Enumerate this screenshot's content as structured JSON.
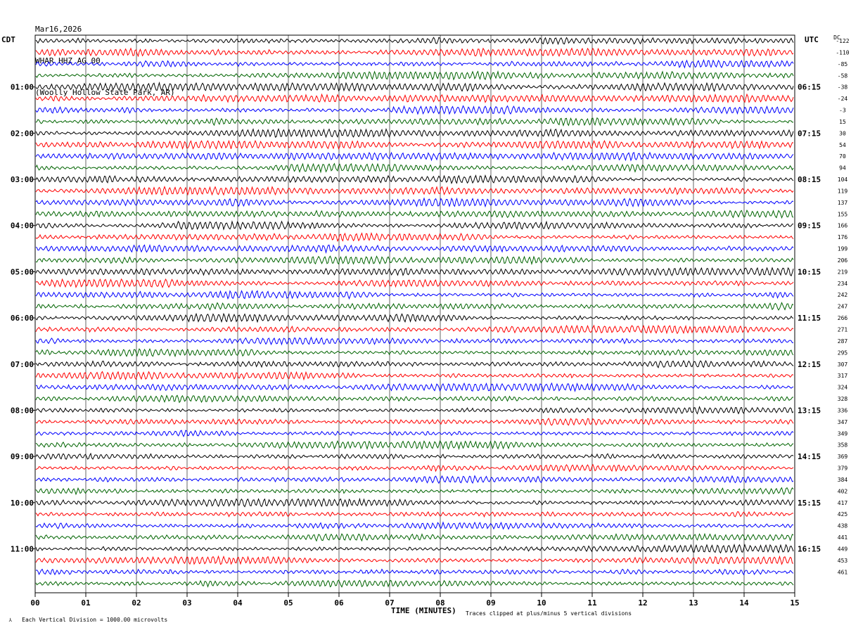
{
  "header": {
    "date": "Mar16,2026",
    "station": "WHAR HHZ AG 00",
    "location": "(Woolly Hollow State Park, AR)"
  },
  "left_zone": "CDT",
  "right_zone": "UTC",
  "dc_label": "DC",
  "footer": {
    "scale": "Each Vertical Division = 1000.00 microvolts",
    "clip_note": "Traces clipped at plus/minus 5 vertical divisions",
    "xlabel": "TIME (MINUTES)"
  },
  "colors": {
    "trace_cycle": [
      "#000000",
      "#ff0000",
      "#0000ff",
      "#006400"
    ],
    "grid": "#000000"
  },
  "chart_data": {
    "type": "line",
    "title": "WHAR HHZ AG 00",
    "xlabel": "TIME (MINUTES)",
    "xlim": [
      0,
      15
    ],
    "x_ticks": [
      "00",
      "01",
      "02",
      "03",
      "04",
      "05",
      "06",
      "07",
      "08",
      "09",
      "10",
      "11",
      "12",
      "13",
      "14",
      "15"
    ],
    "left_hour_labels": [
      "01:00",
      "02:00",
      "03:00",
      "04:00",
      "05:00",
      "06:00",
      "07:00",
      "08:00",
      "09:00",
      "10:00",
      "11:00"
    ],
    "right_hour_labels": [
      "06:15",
      "07:15",
      "08:15",
      "09:15",
      "10:15",
      "11:15",
      "12:15",
      "13:15",
      "14:15",
      "15:15",
      "16:15"
    ],
    "dc_offsets": [
      "-122",
      "-110",
      "-85",
      "-58",
      "-38",
      "-24",
      "-3",
      "15",
      "30",
      "54",
      "70",
      "94",
      "104",
      "119",
      "137",
      "155",
      "166",
      "176",
      "199",
      "206",
      "219",
      "234",
      "242",
      "247",
      "266",
      "271",
      "287",
      "295",
      "307",
      "317",
      "324",
      "328",
      "336",
      "347",
      "349",
      "358",
      "369",
      "379",
      "384",
      "402",
      "417",
      "425",
      "438",
      "441",
      "449",
      "453",
      "461"
    ],
    "rows_per_hour": 4,
    "traces": 48
  }
}
